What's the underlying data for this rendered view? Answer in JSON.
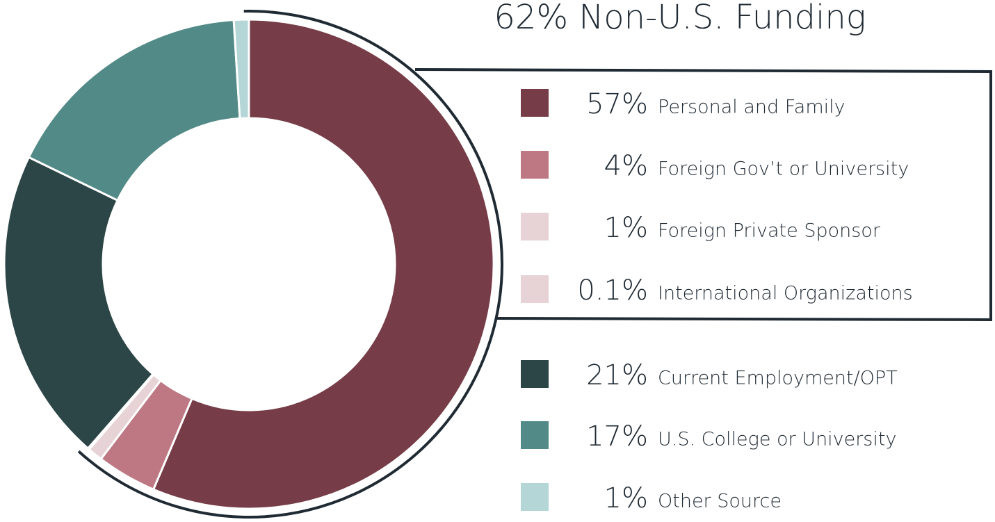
{
  "chart_data": {
    "type": "donut",
    "title": "62% Non-U.S. Funding",
    "categories": [
      "Personal and Family",
      "Foreign Gov’t or University",
      "Foreign Private Sponsor",
      "International Organizations",
      "Current Employment/OPT",
      "U.S. College or University",
      "Other Source"
    ],
    "values": [
      57,
      4,
      1,
      0.1,
      21,
      17,
      1
    ],
    "value_labels": [
      "57%",
      "4%",
      "1%",
      "0.1%",
      "21%",
      "17%",
      "1%"
    ],
    "colors": [
      "#763c47",
      "#bd7883",
      "#e7d2d5",
      "#e7d2d5",
      "#2c4546",
      "#528a87",
      "#b4d6d6"
    ]
  }
}
